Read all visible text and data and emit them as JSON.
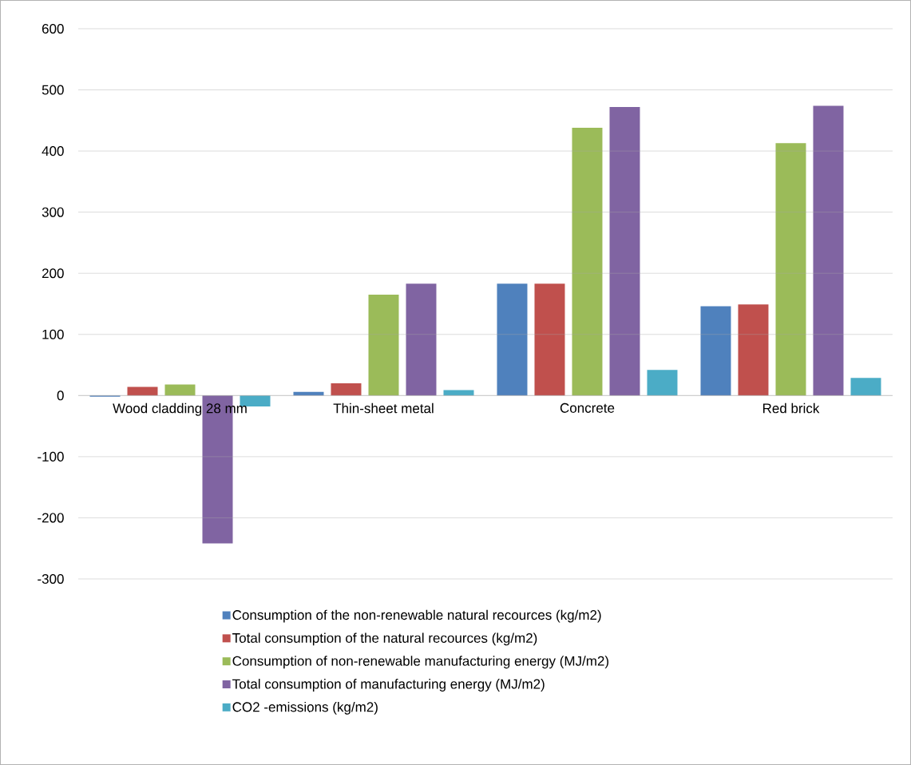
{
  "chart_data": {
    "type": "bar",
    "categories": [
      "Wood cladding 28 mm",
      "Thin-sheet metal",
      "Concrete",
      "Red brick"
    ],
    "series": [
      {
        "name": "Consumption of the non-renewable natural recources (kg/m2)",
        "color": "#4f81bd",
        "values": [
          -2,
          6,
          183,
          146
        ]
      },
      {
        "name": "Total consumption of the natural recources (kg/m2)",
        "color": "#c0504d",
        "values": [
          14,
          20,
          183,
          149
        ]
      },
      {
        "name": "Consumption of non-renewable manufacturing energy (MJ/m2)",
        "color": "#9bbb59",
        "values": [
          18,
          165,
          438,
          413
        ]
      },
      {
        "name": "Total consumption of manufacturing energy (MJ/m2)",
        "color": "#8064a2",
        "values": [
          -242,
          183,
          472,
          474
        ]
      },
      {
        "name": "CO2 -emissions (kg/m2)",
        "color": "#4bacc6",
        "values": [
          -18,
          9,
          42,
          29
        ]
      }
    ],
    "ylim": [
      -300,
      600
    ],
    "yticks": [
      -300,
      -200,
      -100,
      0,
      100,
      200,
      300,
      400,
      500,
      600
    ],
    "grid": "y",
    "legend": "bottom"
  }
}
